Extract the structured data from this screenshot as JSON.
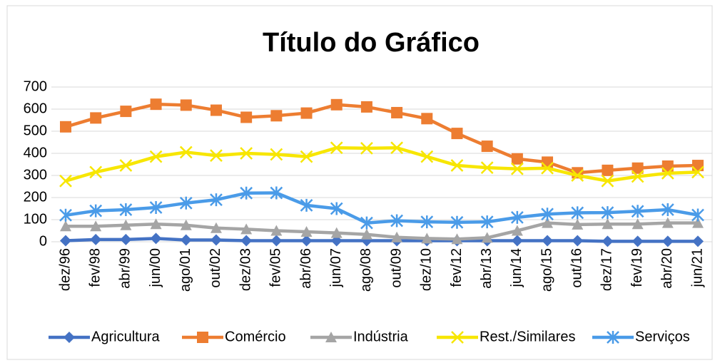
{
  "chart_data": {
    "type": "line",
    "title": "Título do Gráfico",
    "categories": [
      "dez/96",
      "fev/98",
      "abr/99",
      "jun/00",
      "ago/01",
      "out/02",
      "dez/03",
      "fev/05",
      "abr/06",
      "jun/07",
      "ago/08",
      "out/09",
      "dez/10",
      "fev/12",
      "abr/13",
      "jun/14",
      "ago/15",
      "out/16",
      "dez/17",
      "fev/19",
      "abr/20",
      "jun/21"
    ],
    "series": [
      {
        "name": "Agricultura",
        "color": "#4472c4",
        "values": [
          5,
          10,
          10,
          15,
          8,
          8,
          5,
          5,
          5,
          5,
          5,
          5,
          5,
          5,
          5,
          5,
          5,
          5,
          2,
          2,
          2,
          2
        ]
      },
      {
        "name": "Comércio",
        "color": "#ed7d31",
        "values": [
          520,
          560,
          590,
          622,
          618,
          595,
          563,
          570,
          582,
          620,
          610,
          584,
          557,
          490,
          432,
          375,
          360,
          312,
          323,
          333,
          342,
          345
        ]
      },
      {
        "name": "Indústria",
        "color": "#a5a5a5",
        "values": [
          70,
          70,
          75,
          80,
          75,
          62,
          57,
          50,
          45,
          40,
          33,
          20,
          15,
          12,
          18,
          50,
          85,
          78,
          80,
          80,
          85,
          85
        ]
      },
      {
        "name": "Rest./Similares",
        "color": "#f7e600",
        "values": [
          275,
          315,
          345,
          385,
          405,
          390,
          400,
          395,
          385,
          425,
          423,
          425,
          385,
          345,
          335,
          330,
          333,
          300,
          275,
          295,
          310,
          315
        ]
      },
      {
        "name": "Serviços",
        "color": "#4a9be8",
        "values": [
          120,
          140,
          145,
          155,
          175,
          190,
          220,
          221,
          165,
          150,
          85,
          95,
          90,
          88,
          90,
          110,
          125,
          131,
          132,
          138,
          145,
          121
        ]
      }
    ],
    "ylim": [
      0,
      700
    ],
    "yticks": [
      0,
      100,
      200,
      300,
      400,
      500,
      600,
      700
    ],
    "grid": true,
    "legend": "bottom"
  }
}
